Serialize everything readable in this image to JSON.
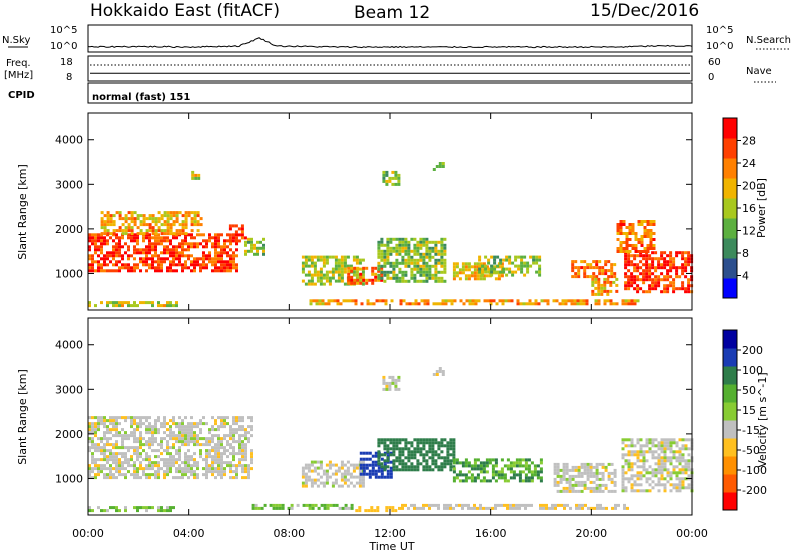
{
  "header": {
    "title": "Hokkaido East (fitACF)",
    "beam": "Beam 12",
    "date": "15/Dec/2016"
  },
  "strip_panels": {
    "nsky": {
      "label": "N.Sky",
      "ticks": [
        "10^5",
        "10^0"
      ]
    },
    "nsearch": {
      "label": "N.Search",
      "ticks": [
        "10^5",
        "10^0"
      ]
    },
    "freq": {
      "label_line1": "Freq.",
      "label_line2": "[MHz]",
      "ticks": [
        "18",
        "8"
      ]
    },
    "nave": {
      "label": "Nave",
      "ticks": [
        "60",
        "0"
      ]
    },
    "cpid": {
      "label": "CPID",
      "mode": "normal (fast) 151"
    }
  },
  "colors": {
    "power_scale": [
      "#0000ff",
      "#2c4f8e",
      "#3c8a5c",
      "#5cb040",
      "#a8c81e",
      "#f0b400",
      "#ff8000",
      "#ff4000",
      "#ff0000"
    ],
    "velocity_scale": [
      "#0000a0",
      "#1a3cb4",
      "#2e7d4a",
      "#55b030",
      "#88cc33",
      "#c0c0c0",
      "#ffc020",
      "#ff9000",
      "#ff5a00",
      "#ff0000"
    ]
  },
  "chart_data": [
    {
      "type": "heatmap",
      "panel": "power",
      "ylabel": "Slant Range [km]",
      "ylim": [
        180,
        4600
      ],
      "xlim": [
        0,
        24
      ],
      "yticks": [
        "1000",
        "2000",
        "3000",
        "4000"
      ],
      "xticks": [
        "00:00",
        "04:00",
        "08:00",
        "12:00",
        "16:00",
        "20:00",
        "00:00"
      ],
      "colorbar": {
        "label": "Power [dB]",
        "ticks": [
          "28",
          "24",
          "20",
          "16",
          "12",
          "8",
          "4"
        ],
        "range": [
          0,
          32
        ]
      },
      "regions": [
        {
          "t": [
            0.0,
            5.9
          ],
          "r": [
            1050,
            1900
          ],
          "v": 27
        },
        {
          "t": [
            0.5,
            4.5
          ],
          "r": [
            1900,
            2400
          ],
          "v": 21
        },
        {
          "t": [
            5.6,
            6.2
          ],
          "r": [
            1700,
            2100
          ],
          "v": 29
        },
        {
          "t": [
            6.2,
            7.0
          ],
          "r": [
            1400,
            1800
          ],
          "v": 14
        },
        {
          "t": [
            0.0,
            3.5
          ],
          "r": [
            250,
            380
          ],
          "v": 17
        },
        {
          "t": [
            8.5,
            11.0
          ],
          "r": [
            750,
            1400
          ],
          "v": 16
        },
        {
          "t": [
            10.3,
            11.7
          ],
          "r": [
            800,
            1150
          ],
          "v": 24
        },
        {
          "t": [
            11.5,
            14.2
          ],
          "r": [
            800,
            1800
          ],
          "v": 14
        },
        {
          "t": [
            14.5,
            16.5
          ],
          "r": [
            900,
            1250
          ],
          "v": 20
        },
        {
          "t": [
            15.5,
            18.0
          ],
          "r": [
            950,
            1400
          ],
          "v": 15
        },
        {
          "t": [
            19.2,
            20.9
          ],
          "r": [
            900,
            1300
          ],
          "v": 24
        },
        {
          "t": [
            20.0,
            21.0
          ],
          "r": [
            550,
            900
          ],
          "v": 21
        },
        {
          "t": [
            21.3,
            24.0
          ],
          "r": [
            600,
            1500
          ],
          "v": 28
        },
        {
          "t": [
            21.0,
            22.5
          ],
          "r": [
            1500,
            2200
          ],
          "v": 24
        },
        {
          "t": [
            8.8,
            21.8
          ],
          "r": [
            300,
            420
          ],
          "v": 22
        },
        {
          "t": [
            11.7,
            12.3
          ],
          "r": [
            3000,
            3300
          ],
          "v": 14
        },
        {
          "t": [
            13.7,
            14.1
          ],
          "r": [
            3300,
            3500
          ],
          "v": 15
        },
        {
          "t": [
            4.1,
            4.4
          ],
          "r": [
            3100,
            3300
          ],
          "v": 18
        }
      ]
    },
    {
      "type": "heatmap",
      "panel": "velocity",
      "ylabel": "Slant Range [km]",
      "ylim": [
        180,
        4600
      ],
      "xlim": [
        0,
        24
      ],
      "yticks": [
        "1000",
        "2000",
        "3000",
        "4000"
      ],
      "xticks": [
        "00:00",
        "04:00",
        "08:00",
        "12:00",
        "16:00",
        "20:00",
        "00:00"
      ],
      "xlabel": "Time UT",
      "colorbar": {
        "label": "Velocity [m s^-1]",
        "ticks": [
          "200",
          "100",
          "50",
          "15",
          "-15",
          "-50",
          "-100",
          "-200"
        ],
        "range": [
          -250,
          250
        ]
      },
      "regions": [
        {
          "t": [
            0.0,
            6.5
          ],
          "r": [
            1000,
            2400
          ],
          "v": 0
        },
        {
          "t": [
            0.0,
            3.5
          ],
          "r": [
            250,
            380
          ],
          "v": 30
        },
        {
          "t": [
            8.5,
            11.0
          ],
          "r": [
            800,
            1400
          ],
          "v": 0
        },
        {
          "t": [
            10.8,
            12.0
          ],
          "r": [
            1000,
            1600
          ],
          "v": 150
        },
        {
          "t": [
            11.5,
            14.5
          ],
          "r": [
            1200,
            1900
          ],
          "v": 80
        },
        {
          "t": [
            14.5,
            18.0
          ],
          "r": [
            950,
            1450
          ],
          "v": 40
        },
        {
          "t": [
            18.5,
            21.0
          ],
          "r": [
            700,
            1350
          ],
          "v": 0
        },
        {
          "t": [
            21.2,
            24.0
          ],
          "r": [
            700,
            1900
          ],
          "v": 0
        },
        {
          "t": [
            6.5,
            10.5
          ],
          "r": [
            300,
            430
          ],
          "v": 30
        },
        {
          "t": [
            10.5,
            12.2
          ],
          "r": [
            250,
            380
          ],
          "v": -30
        },
        {
          "t": [
            12.2,
            21.5
          ],
          "r": [
            300,
            430
          ],
          "v": -10
        },
        {
          "t": [
            11.7,
            12.3
          ],
          "r": [
            3000,
            3300
          ],
          "v": 0
        },
        {
          "t": [
            13.7,
            14.1
          ],
          "r": [
            3300,
            3500
          ],
          "v": 0
        }
      ]
    },
    {
      "type": "line",
      "panel": "nsky_nsearch",
      "series": [
        {
          "values_t": [
            0,
            2,
            4,
            6,
            6.8,
            7.5,
            10,
            14,
            18,
            21,
            22.5,
            24
          ],
          "values_y": [
            0.8,
            0.9,
            0.8,
            1.0,
            2.6,
            1.0,
            0.8,
            0.8,
            0.8,
            0.8,
            1.0,
            1.0
          ]
        }
      ]
    },
    {
      "type": "line",
      "panel": "freq_nave",
      "series": [
        {
          "values_t": [
            0,
            24
          ],
          "values_y": [
            10.8,
            10.8
          ]
        }
      ]
    }
  ]
}
